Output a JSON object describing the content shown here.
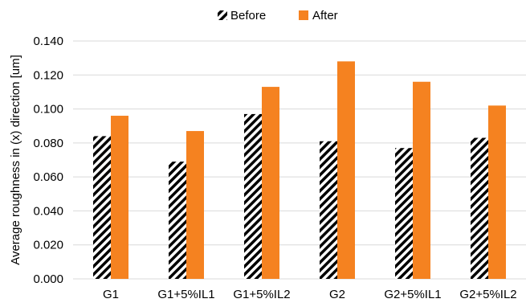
{
  "chart_data": {
    "type": "bar",
    "title": "",
    "xlabel": "",
    "ylabel": "Average roughness in (x) direction [um]",
    "categories": [
      "G1",
      "G1+5%IL1",
      "G1+5%IL2",
      "G2",
      "G2+5%IL1",
      "G2+5%IL2"
    ],
    "series": [
      {
        "name": "Before",
        "values": [
          0.084,
          0.069,
          0.097,
          0.081,
          0.077,
          0.083
        ],
        "fill": "hatched",
        "color": "#000000"
      },
      {
        "name": "After",
        "values": [
          0.096,
          0.087,
          0.113,
          0.128,
          0.116,
          0.102
        ],
        "fill": "solid",
        "color": "#F58220"
      }
    ],
    "ylim": [
      0,
      0.14
    ],
    "yticks": [
      "0.000",
      "0.020",
      "0.040",
      "0.060",
      "0.080",
      "0.100",
      "0.120",
      "0.140"
    ],
    "grid": true,
    "legend_position": "top-center"
  }
}
